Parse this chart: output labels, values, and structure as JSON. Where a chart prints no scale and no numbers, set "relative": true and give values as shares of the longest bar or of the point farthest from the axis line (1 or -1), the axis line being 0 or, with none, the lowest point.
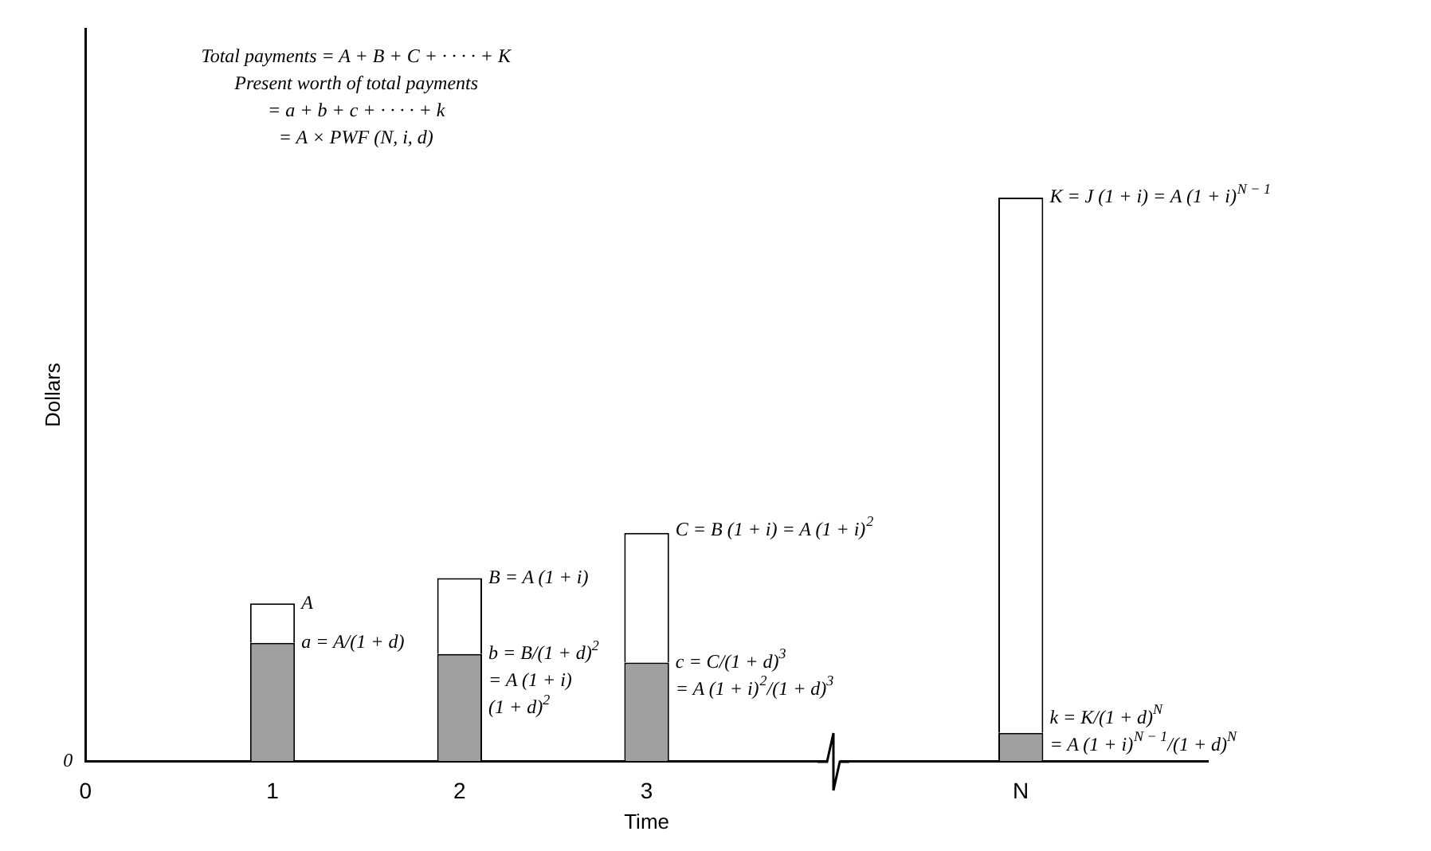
{
  "chart_data": {
    "type": "bar",
    "stacked": true,
    "relative": true,
    "xlabel": "Time",
    "ylabel": "Dollars",
    "categories": [
      "0",
      "1",
      "2",
      "3",
      null,
      "N",
      null
    ],
    "series": [
      {
        "color": "#a0a0a0",
        "values": [
          null,
          0.21,
          0.19,
          0.175,
          null,
          0.05,
          null
        ]
      },
      {
        "color": "#ffffff",
        "values": [
          null,
          0.07,
          0.135,
          0.23,
          null,
          0.95,
          null
        ]
      }
    ],
    "annotations": [
      "Total payments = A + B + C + · · · · + K",
      "Present worth of total payments",
      "= a + b + c + · · · · + k",
      "= A × PWF (N, i, d)",
      {
        "text": "A",
        "x": "1",
        "y": 0.28
      },
      {
        "text": "a = A/(1 + d)",
        "x": "1",
        "y": 0.21
      },
      {
        "text": "B = A (1 + i)",
        "x": "2",
        "y": 0.325
      },
      {
        "text": "b = B/(1 + d)$^{2}$",
        "x": "2",
        "y": 0.19
      },
      {
        "text": "= A (1 + i)",
        "x": "2",
        "y": 0.19
      },
      {
        "text": "(1 + d)$^{2}$",
        "x": "2",
        "y": 0.19
      },
      {
        "text": "C = B (1 + i) = A (1 + i)$^{2}$",
        "x": "3",
        "y": 0.41
      },
      {
        "text": "c = C/(1 + d)$^{3}$",
        "x": "3",
        "y": 0.175
      },
      {
        "text": "= A (1 + i)$^{2}$/(1 + d)$^{3}$",
        "x": "3",
        "y": 0.175
      },
      {
        "text": "K = J (1 + i) = A (1 + i)$^{N − 1}$",
        "x": "N",
        "y": 1
      },
      {
        "text": "k = K/(1 + d)$^{N}$",
        "x": "N",
        "y": 0.05
      },
      {
        "text": "= A (1 + i)$^{N − 1}$/(1 + d)$^{N}$",
        "x": "N",
        "y": 0.05
      },
      "0"
    ]
  }
}
